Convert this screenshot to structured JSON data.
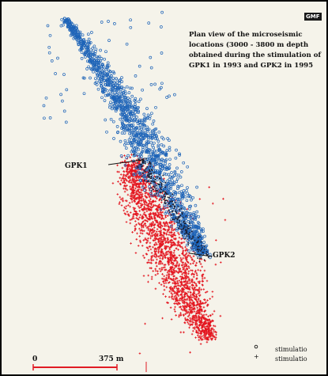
{
  "logo": {
    "text": "GMF"
  },
  "caption": {
    "lines": [
      "Plan view of the microseismic",
      "locations (3000 - 3800 m depth",
      "obtained during the stimulation of",
      "GPK1 in 1993 and GPK2 in 1995"
    ]
  },
  "wells": {
    "gpk1": {
      "label": "GPK1"
    },
    "gpk2": {
      "label": "GPK2"
    }
  },
  "scale_bar": {
    "start_label": "0",
    "length_label": "375 m"
  },
  "legend": [
    {
      "symbol": "o",
      "label": "stimulatio",
      "color": "#1a5fb4"
    },
    {
      "symbol": "+",
      "label": "stimulatio",
      "color": "#e01b24"
    }
  ],
  "colors": {
    "blue_events": "#1e64b8",
    "red_events": "#e3141e",
    "background": "#f5f3ea",
    "frame": "#000000"
  }
}
